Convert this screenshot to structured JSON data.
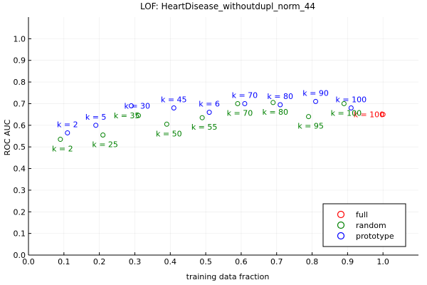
{
  "chart_data": {
    "type": "scatter",
    "title": "LOF: HeartDisease_withoutdupl_norm_44",
    "xlabel": "training data fraction",
    "ylabel": "ROC AUC",
    "xlim": [
      0.0,
      1.1
    ],
    "ylim": [
      0.0,
      1.1
    ],
    "xticks": [
      0.0,
      0.1,
      0.2,
      0.3,
      0.4,
      0.5,
      0.6,
      0.7,
      0.8,
      0.9,
      1.0
    ],
    "xtick_labels": [
      "0.0",
      "0.1",
      "0.2",
      "0.3",
      "0.4",
      "0.5",
      "0.6",
      "0.7",
      "0.8",
      "0.9",
      "1.0"
    ],
    "yticks": [
      0.0,
      0.1,
      0.2,
      0.3,
      0.4,
      0.5,
      0.6,
      0.7,
      0.8,
      0.9,
      1.0
    ],
    "ytick_labels": [
      "0.0",
      "0.1",
      "0.2",
      "0.3",
      "0.4",
      "0.5",
      "0.6",
      "0.7",
      "0.8",
      "0.9",
      "1.0"
    ],
    "grid": true,
    "legend_position": "bottom-right",
    "series": [
      {
        "name": "full",
        "color": "#ff0000",
        "points": [
          {
            "x": 1.0,
            "y": 0.65,
            "label": "k = 100",
            "label_pos": "left"
          }
        ]
      },
      {
        "name": "random",
        "color": "#008000",
        "points": [
          {
            "x": 0.09,
            "y": 0.535,
            "label": "k = 2",
            "label_pos": "below"
          },
          {
            "x": 0.21,
            "y": 0.555,
            "label": "k = 25",
            "label_pos": "below"
          },
          {
            "x": 0.31,
            "y": 0.645,
            "label": "k = 35",
            "label_pos": "left"
          },
          {
            "x": 0.39,
            "y": 0.605,
            "label": "k = 50",
            "label_pos": "below"
          },
          {
            "x": 0.49,
            "y": 0.635,
            "label": "k = 55",
            "label_pos": "below"
          },
          {
            "x": 0.59,
            "y": 0.7,
            "label": "k = 70",
            "label_pos": "below"
          },
          {
            "x": 0.69,
            "y": 0.705,
            "label": "k = 80",
            "label_pos": "below"
          },
          {
            "x": 0.79,
            "y": 0.64,
            "label": "k = 95",
            "label_pos": "below"
          },
          {
            "x": 0.89,
            "y": 0.7,
            "label": "k = 100",
            "label_pos": "below"
          }
        ]
      },
      {
        "name": "prototype",
        "color": "#0000ff",
        "points": [
          {
            "x": 0.11,
            "y": 0.565,
            "label": "k = 2",
            "label_pos": "above"
          },
          {
            "x": 0.19,
            "y": 0.6,
            "label": "k = 5",
            "label_pos": "above"
          },
          {
            "x": 0.29,
            "y": 0.69,
            "label": "k = 30",
            "label_pos": "right"
          },
          {
            "x": 0.41,
            "y": 0.68,
            "label": "k = 45",
            "label_pos": "above"
          },
          {
            "x": 0.51,
            "y": 0.66,
            "label": "k = 6",
            "label_pos": "above"
          },
          {
            "x": 0.61,
            "y": 0.7,
            "label": "k = 70",
            "label_pos": "above"
          },
          {
            "x": 0.71,
            "y": 0.695,
            "label": "k = 80",
            "label_pos": "above"
          },
          {
            "x": 0.81,
            "y": 0.71,
            "label": "k = 90",
            "label_pos": "above"
          },
          {
            "x": 0.91,
            "y": 0.68,
            "label": "k = 100",
            "label_pos": "above"
          }
        ]
      }
    ]
  }
}
